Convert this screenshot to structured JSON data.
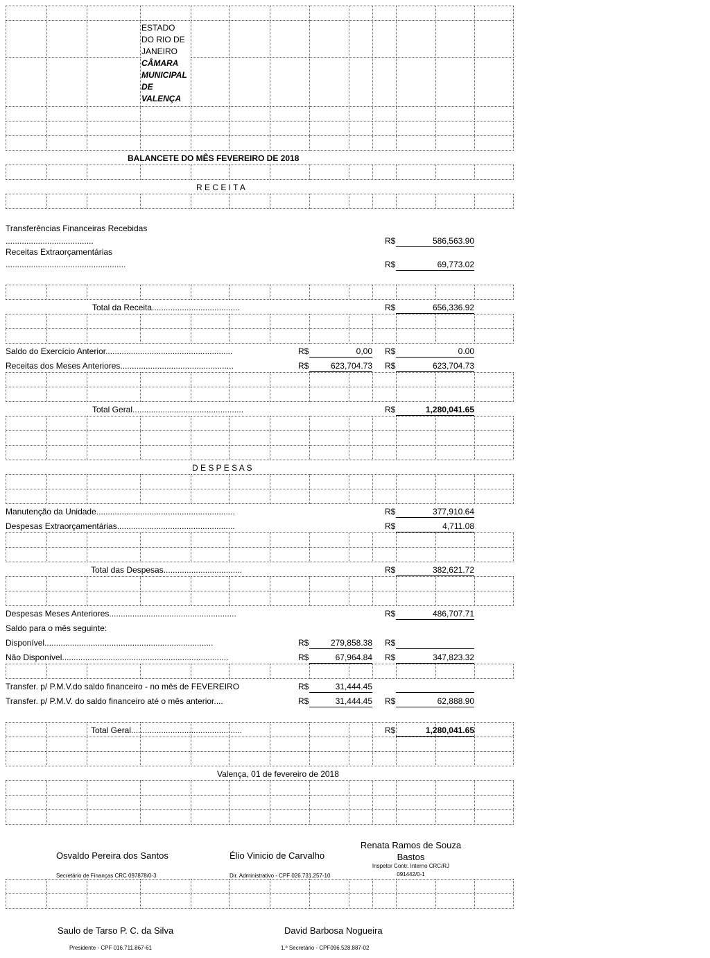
{
  "header": {
    "state_lines": [
      "ESTADO",
      "DO RIO DE",
      "JANEIRO"
    ],
    "chamber_lines": [
      "CÂMARA",
      "MUNICIPAL",
      "DE",
      "VALENÇA"
    ],
    "title": "BALANCETE DO MÊS FEVEREIRO DE 2018"
  },
  "receita": {
    "heading": "R E C E I T A",
    "transf_label": "Transferências Financeiras Recebidas",
    "transf_dots": "......................................",
    "transf_cur": "R$",
    "transf_value": "586,563.90",
    "extra_label": "Receitas Extraorçamentárias",
    "extra_dots": "....................................................",
    "extra_cur": "R$",
    "extra_value": "69,773.02",
    "total_label": "Total da Receita......................................",
    "total_cur": "R$",
    "total_value": "656,336.92",
    "saldo_label": "Saldo do Exercício Anterior.......................................................",
    "saldo_cur1": "R$",
    "saldo_value1": "0,00",
    "saldo_cur2": "R$",
    "saldo_value2": "0.00",
    "meses_label": "Receitas dos Meses Anteriores.................................................",
    "meses_cur1": "R$",
    "meses_value1": "623,704.73",
    "meses_cur2": "R$",
    "meses_value2": "623,704.73",
    "geral_label": "Total Geral................................................",
    "geral_cur": "R$",
    "geral_value": "1,280,041.65"
  },
  "despesas": {
    "heading": "D E S P E S A S",
    "manut_label": "Manutenção da Unidade............................................................",
    "manut_cur": "R$",
    "manut_value": "377,910.64",
    "extra_label": "Despesas Extraorçamentárias...................................................",
    "extra_cur": "R$",
    "extra_value": "4,711.08",
    "total_label": "Total das Despesas..................................",
    "total_cur": "R$",
    "total_value": "382,621.72",
    "meses_label": "Despesas Meses Anteriores.......................................................",
    "meses_cur": "R$",
    "meses_value": "486,707.71",
    "saldo_label": "Saldo para o mês seguinte:",
    "disp_label": "Disponível.........................................................................",
    "disp_cur1": "R$",
    "disp_value1": "279,858.38",
    "disp_cur2": "R$",
    "naodisp_label": "Não Disponível........................................................................",
    "naodisp_cur1": "R$",
    "naodisp_value1": "67,964.84",
    "naodisp_cur2": "R$",
    "naodisp_value2": "347,823.32",
    "transf1_label": "Transfer. p/ P.M.V.do saldo financeiro - no mês de FEVEREIRO",
    "transf1_cur": "R$",
    "transf1_value": "31,444.45",
    "transf2_label": "Transfer. p/ P.M.V. do saldo financeiro até o mês anterior....",
    "transf2_cur1": "R$",
    "transf2_value1": "31,444.45",
    "transf2_cur2": "R$",
    "transf2_value2": "62,888.90",
    "geral_label": "Total Geral................................................",
    "geral_cur": "R$",
    "geral_value": "1,280,041.65"
  },
  "date": "Valença, 01 de fevereiro de 2018",
  "signatures": [
    {
      "name": "Osvaldo Pereira dos Santos",
      "role": "Secretário de Finanças CRC 097878/0-3"
    },
    {
      "name": "Élio Vinicio de Carvalho",
      "role": "Dir. Administrativo - CPF 026.731.257-10"
    },
    {
      "name_lines": [
        "Renata Ramos de Souza",
        "Bastos"
      ],
      "role_lines": [
        "Inspetor Contr. Interno CRC/RJ",
        "091442/0-1"
      ]
    },
    {
      "name": "Saulo de Tarso P. C. da Silva",
      "role": "Presidente - CPF 016.711.867-61"
    },
    {
      "name": "David Barbosa Nogueira",
      "role": "1.º Secretário - CPF096.528.887-02"
    }
  ]
}
